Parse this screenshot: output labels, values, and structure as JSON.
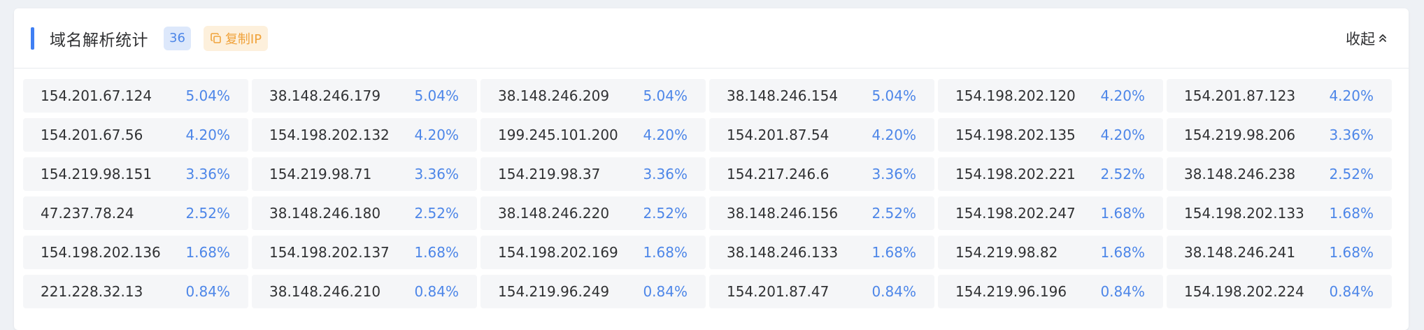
{
  "header": {
    "title": "域名解析统计",
    "count": "36",
    "copy_label": "复制IP",
    "collapse_label": "收起"
  },
  "colors": {
    "accent": "#3f7ff3",
    "badge_bg": "#dde8fb",
    "copy_bg": "#fdf0dc",
    "copy_fg": "#f0a23a",
    "percent": "#4d86e8"
  },
  "items": [
    {
      "ip": "154.201.67.124",
      "pct": "5.04%"
    },
    {
      "ip": "38.148.246.179",
      "pct": "5.04%"
    },
    {
      "ip": "38.148.246.209",
      "pct": "5.04%"
    },
    {
      "ip": "38.148.246.154",
      "pct": "5.04%"
    },
    {
      "ip": "154.198.202.120",
      "pct": "4.20%"
    },
    {
      "ip": "154.201.87.123",
      "pct": "4.20%"
    },
    {
      "ip": "154.201.67.56",
      "pct": "4.20%"
    },
    {
      "ip": "154.198.202.132",
      "pct": "4.20%"
    },
    {
      "ip": "199.245.101.200",
      "pct": "4.20%"
    },
    {
      "ip": "154.201.87.54",
      "pct": "4.20%"
    },
    {
      "ip": "154.198.202.135",
      "pct": "4.20%"
    },
    {
      "ip": "154.219.98.206",
      "pct": "3.36%"
    },
    {
      "ip": "154.219.98.151",
      "pct": "3.36%"
    },
    {
      "ip": "154.219.98.71",
      "pct": "3.36%"
    },
    {
      "ip": "154.219.98.37",
      "pct": "3.36%"
    },
    {
      "ip": "154.217.246.6",
      "pct": "3.36%"
    },
    {
      "ip": "154.198.202.221",
      "pct": "2.52%"
    },
    {
      "ip": "38.148.246.238",
      "pct": "2.52%"
    },
    {
      "ip": "47.237.78.24",
      "pct": "2.52%"
    },
    {
      "ip": "38.148.246.180",
      "pct": "2.52%"
    },
    {
      "ip": "38.148.246.220",
      "pct": "2.52%"
    },
    {
      "ip": "38.148.246.156",
      "pct": "2.52%"
    },
    {
      "ip": "154.198.202.247",
      "pct": "1.68%"
    },
    {
      "ip": "154.198.202.133",
      "pct": "1.68%"
    },
    {
      "ip": "154.198.202.136",
      "pct": "1.68%"
    },
    {
      "ip": "154.198.202.137",
      "pct": "1.68%"
    },
    {
      "ip": "154.198.202.169",
      "pct": "1.68%"
    },
    {
      "ip": "38.148.246.133",
      "pct": "1.68%"
    },
    {
      "ip": "154.219.98.82",
      "pct": "1.68%"
    },
    {
      "ip": "38.148.246.241",
      "pct": "1.68%"
    },
    {
      "ip": "221.228.32.13",
      "pct": "0.84%"
    },
    {
      "ip": "38.148.246.210",
      "pct": "0.84%"
    },
    {
      "ip": "154.219.96.249",
      "pct": "0.84%"
    },
    {
      "ip": "154.201.87.47",
      "pct": "0.84%"
    },
    {
      "ip": "154.219.96.196",
      "pct": "0.84%"
    },
    {
      "ip": "154.198.202.224",
      "pct": "0.84%"
    }
  ]
}
